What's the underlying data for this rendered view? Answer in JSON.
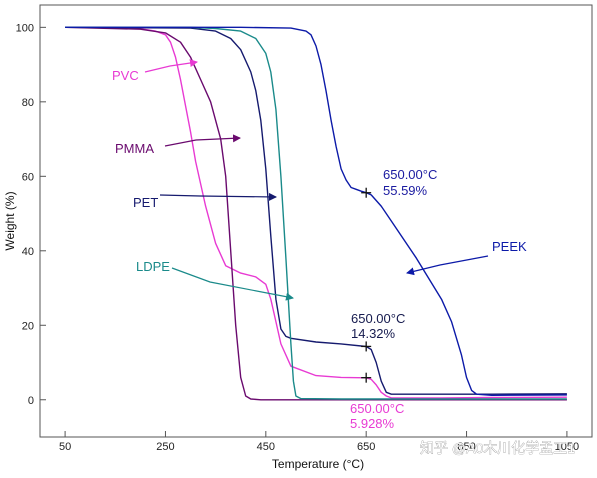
{
  "chart_data": {
    "type": "line",
    "xlabel": "Temperature (°C)",
    "ylabel": "Weight (%)",
    "xlim": [
      0,
      1100
    ],
    "ylim": [
      -10,
      106
    ],
    "xticks": [
      50,
      250,
      450,
      650,
      850,
      1050
    ],
    "xtick_labels": [
      "50",
      "250",
      "450",
      "650",
      "850",
      "1050"
    ],
    "yticks": [
      0,
      20,
      40,
      60,
      80,
      100
    ],
    "grid": false,
    "series": [
      {
        "name": "PVC",
        "color": "#e83ad3",
        "x": [
          50,
          150,
          200,
          230,
          250,
          260,
          270,
          280,
          290,
          300,
          310,
          330,
          350,
          370,
          400,
          430,
          450,
          460,
          470,
          480,
          500,
          550,
          600,
          650,
          660,
          670,
          680,
          690,
          700,
          800,
          900,
          1050
        ],
        "y": [
          100,
          100,
          99.6,
          99,
          98,
          96,
          92,
          86,
          79,
          72,
          64,
          52,
          42,
          36,
          34,
          33,
          31,
          27,
          21,
          15,
          9,
          6.5,
          6,
          5.9,
          5.5,
          4,
          2,
          1,
          0.5,
          0.5,
          0.6,
          0.7
        ]
      },
      {
        "name": "PMMA",
        "color": "#6a0a6e",
        "x": [
          50,
          200,
          250,
          280,
          300,
          320,
          340,
          360,
          370,
          380,
          390,
          400,
          410,
          420,
          440,
          500,
          700,
          1050
        ],
        "y": [
          100,
          99.5,
          98.5,
          96,
          92,
          86,
          80,
          70,
          60,
          40,
          20,
          6,
          1,
          0.2,
          0,
          0,
          0,
          0
        ]
      },
      {
        "name": "PET",
        "color": "#151a6e",
        "x": [
          50,
          300,
          350,
          380,
          400,
          420,
          430,
          440,
          450,
          460,
          470,
          480,
          490,
          500,
          550,
          600,
          650,
          660,
          670,
          680,
          690,
          700,
          800,
          900,
          1050
        ],
        "y": [
          100,
          99.8,
          99,
          97,
          94,
          88,
          83,
          75,
          62,
          44,
          27,
          19,
          17,
          16.5,
          15.5,
          15,
          14.3,
          13.5,
          10,
          5,
          2,
          1.5,
          1.5,
          1.5,
          1.6
        ]
      },
      {
        "name": "LDPE",
        "color": "#1a8a8a",
        "x": [
          50,
          300,
          350,
          400,
          430,
          450,
          460,
          470,
          480,
          490,
          500,
          505,
          510,
          520,
          600,
          800,
          1050
        ],
        "y": [
          100,
          100,
          99.7,
          99,
          97,
          93,
          88,
          78,
          60,
          38,
          15,
          5,
          1,
          0.3,
          0.2,
          0.2,
          0.2
        ]
      },
      {
        "name": "PEEK",
        "color": "#0c1aa8",
        "x": [
          50,
          400,
          500,
          530,
          540,
          550,
          560,
          570,
          580,
          590,
          600,
          610,
          620,
          630,
          640,
          650,
          660,
          680,
          700,
          750,
          800,
          820,
          840,
          850,
          860,
          870,
          900,
          1050
        ],
        "y": [
          100,
          100,
          99.8,
          99,
          98,
          95,
          90,
          83,
          75,
          68,
          62,
          59,
          57,
          56.5,
          56,
          55.6,
          55,
          52,
          48,
          38,
          27,
          21,
          12,
          6,
          2.5,
          1.5,
          1.2,
          1.3
        ]
      }
    ],
    "markers": [
      {
        "x": 650,
        "y": 55.59,
        "series": "PEEK"
      },
      {
        "x": 650,
        "y": 14.32,
        "series": "PET"
      },
      {
        "x": 650,
        "y": 5.928,
        "series": "PVC"
      }
    ],
    "label_texts": {
      "pvc": "PVC",
      "pmma": "PMMA",
      "pet": "PET",
      "ldpe": "LDPE",
      "peek": "PEEK",
      "peek_temp": "650.00°C",
      "peek_weight": "55.59%",
      "pet_temp": "650.00°C",
      "pet_weight": "14.32%",
      "pvc_temp": "650.00°C",
      "pvc_weight": "5.928%"
    },
    "watermark": "知乎 @A0木川化学孟工1"
  }
}
